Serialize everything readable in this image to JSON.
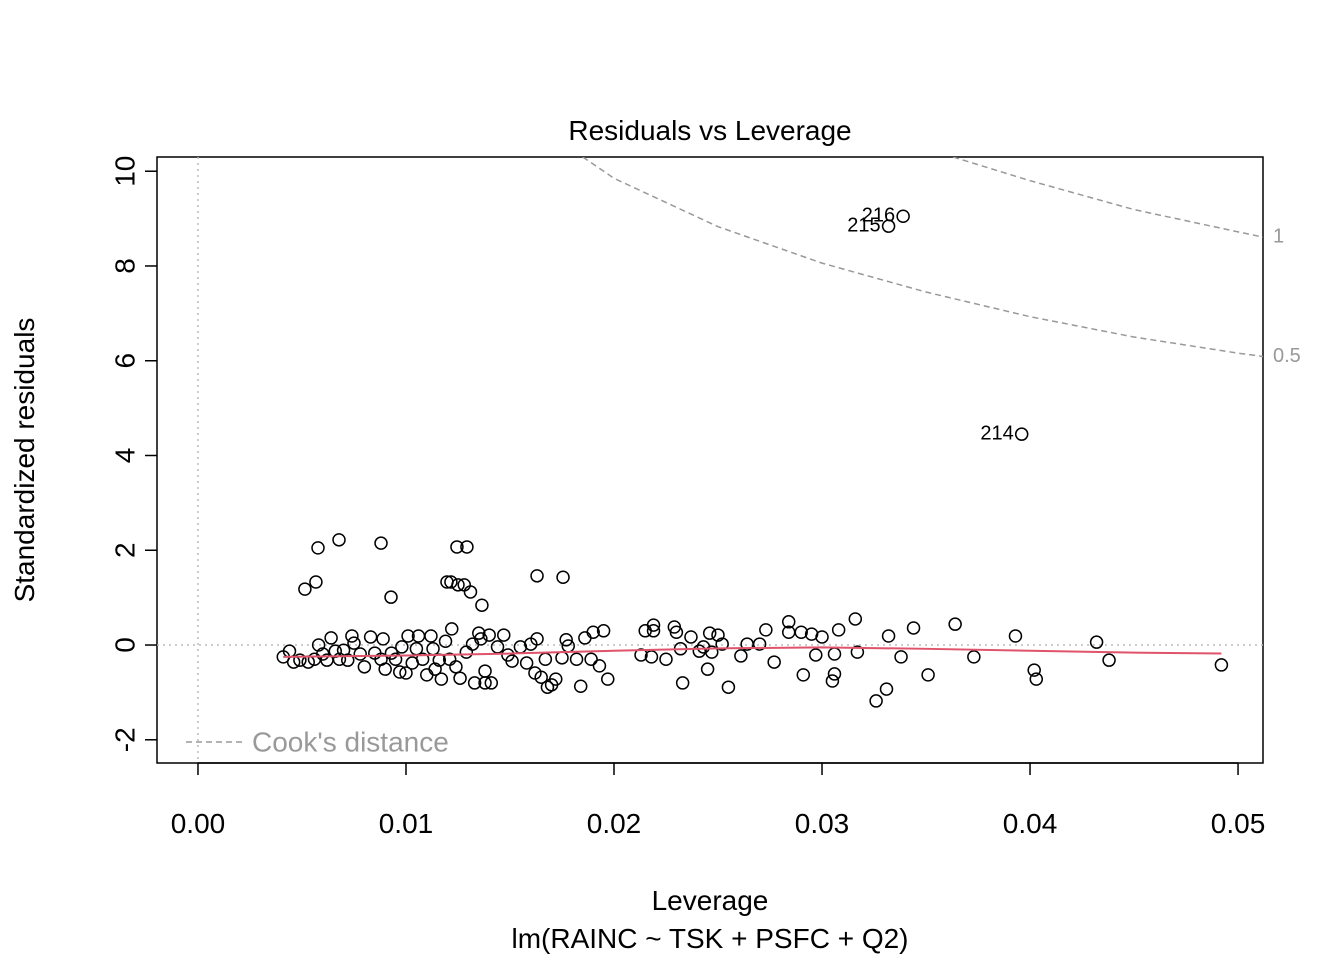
{
  "chart_data": {
    "type": "scatter",
    "title": "Residuals vs Leverage",
    "x_label": "Leverage",
    "y_label": "Standardized residuals",
    "subtitle": "lm(RAINC ~ TSK + PSFC + Q2)",
    "xlim": [
      -0.00197,
      0.0512
    ],
    "ylim": [
      -2.49,
      10.3
    ],
    "xticks": [
      {
        "value": 0,
        "label": "0.00"
      },
      0.01,
      0.02,
      0.03,
      0.04,
      0.05
    ],
    "yticks": [
      -2,
      0,
      2,
      4,
      6,
      8,
      10
    ],
    "reference_lines": {
      "x": 0,
      "y": 0
    },
    "series": [
      {
        "color": "#000000",
        "x": [
          0.00577,
          0.00678,
          0.0088,
          0.01245,
          0.01293,
          0.00514,
          0.00567,
          0.00928,
          0.01197,
          0.01216,
          0.0125,
          0.0128,
          0.0131,
          0.01365,
          0.0163,
          0.01755,
          0.0492,
          0.0438,
          0.0432,
          0.0402,
          0.0403,
          0.0393,
          0.0373,
          0.0364,
          0.0351,
          0.0344,
          0.0338,
          0.0332,
          0.0331,
          0.0326,
          0.0317,
          0.0316,
          0.0308,
          0.0306,
          0.0306,
          0.0305,
          0.03,
          0.0297,
          0.0295,
          0.0291,
          0.029,
          0.0284,
          0.0284,
          0.0277,
          0.0273,
          0.027,
          0.0264,
          0.0261,
          0.0255,
          0.0252,
          0.025,
          0.0247,
          0.0246,
          0.0245,
          0.0243,
          0.0241,
          0.0237,
          0.0233,
          0.0232,
          0.023,
          0.0229,
          0.0225,
          0.0219,
          0.0219,
          0.0218,
          0.0215,
          0.0213,
          0.0197,
          0.0195,
          0.0193,
          0.019,
          0.0189,
          0.0186,
          0.0184,
          0.0182,
          0.0178,
          0.0177,
          0.0175,
          0.0172,
          0.017,
          0.0168,
          0.0167,
          0.0165,
          0.0163,
          0.0162,
          0.016,
          0.0158,
          0.0155,
          0.0151,
          0.0149,
          0.0147,
          0.0144,
          0.0141,
          0.014,
          0.0138,
          0.0138,
          0.0136,
          0.0135,
          0.0133,
          0.0132,
          0.0129,
          0.0126,
          0.0124,
          0.0122,
          0.0121,
          0.0119,
          0.0117,
          0.0116,
          0.0114,
          0.0113,
          0.0112,
          0.011,
          0.0108,
          0.0106,
          0.0105,
          0.0103,
          0.0101,
          0.01,
          0.0098,
          0.0097,
          0.0095,
          0.0093,
          0.009,
          0.0089,
          0.0088,
          0.0085,
          0.0083,
          0.008,
          0.0078,
          0.0075,
          0.0074,
          0.0072,
          0.007,
          0.0068,
          0.0066,
          0.0064,
          0.0062,
          0.006,
          0.0058,
          0.0056,
          0.0053,
          0.0049,
          0.0046,
          0.0044,
          0.0041
        ],
        "y": [
          2.05,
          2.22,
          2.15,
          2.07,
          2.07,
          1.18,
          1.33,
          1.01,
          1.33,
          1.33,
          1.27,
          1.27,
          1.12,
          0.84,
          1.46,
          1.43,
          -0.42,
          -0.32,
          0.06,
          -0.53,
          -0.72,
          0.19,
          -0.25,
          0.44,
          -0.63,
          0.36,
          -0.25,
          0.19,
          -0.93,
          -1.18,
          -0.15,
          0.55,
          0.32,
          -0.19,
          -0.61,
          -0.76,
          0.17,
          -0.21,
          0.23,
          -0.63,
          0.27,
          0.49,
          0.27,
          -0.36,
          0.32,
          0.02,
          0.02,
          -0.23,
          -0.89,
          0.02,
          0.21,
          -0.15,
          0.25,
          -0.51,
          -0.04,
          -0.13,
          0.17,
          -0.8,
          -0.08,
          0.27,
          0.38,
          -0.3,
          0.3,
          0.42,
          -0.25,
          0.3,
          -0.21,
          -0.72,
          0.3,
          -0.44,
          0.27,
          -0.3,
          0.15,
          -0.87,
          -0.3,
          -0.02,
          0.11,
          -0.27,
          -0.72,
          -0.84,
          -0.89,
          -0.3,
          -0.68,
          0.13,
          -0.59,
          0.02,
          -0.38,
          -0.04,
          -0.34,
          -0.21,
          0.21,
          -0.04,
          -0.8,
          0.21,
          -0.55,
          -0.8,
          0.13,
          0.25,
          -0.8,
          0.02,
          -0.15,
          -0.7,
          -0.46,
          0.34,
          -0.3,
          0.08,
          -0.72,
          -0.32,
          -0.51,
          -0.08,
          0.19,
          -0.63,
          -0.3,
          0.19,
          -0.08,
          -0.38,
          0.19,
          -0.59,
          -0.04,
          -0.57,
          -0.3,
          -0.17,
          -0.51,
          0.13,
          -0.3,
          -0.17,
          0.17,
          -0.46,
          -0.19,
          0.04,
          0.19,
          -0.32,
          -0.11,
          -0.3,
          -0.13,
          0.15,
          -0.32,
          -0.19,
          0,
          -0.3,
          -0.36,
          -0.32,
          -0.36,
          -0.13,
          -0.25
        ]
      }
    ],
    "labeled_points": {
      "labels": [
        "214",
        "215",
        "216"
      ],
      "x": [
        0.0396,
        0.0332,
        0.0339
      ],
      "y": [
        4.45,
        8.84,
        9.05
      ]
    },
    "smooth": {
      "color": "#df536b",
      "x": [
        0.0041,
        0.01,
        0.015,
        0.02,
        0.025,
        0.03,
        0.035,
        0.04,
        0.045,
        0.0492
      ],
      "y": [
        -0.25,
        -0.22,
        -0.18,
        -0.12,
        -0.07,
        -0.05,
        -0.08,
        -0.12,
        -0.16,
        -0.18
      ]
    },
    "contours": [
      {
        "label": "0.5",
        "x": [
          0.0185,
          0.02,
          0.025,
          0.03,
          0.035,
          0.04,
          0.045,
          0.05,
          0.0512
        ],
        "y": [
          10.3,
          9.85,
          8.83,
          8.06,
          7.45,
          6.93,
          6.5,
          6.16,
          6.09
        ]
      },
      {
        "label": "1",
        "x": [
          0.0363,
          0.04,
          0.045,
          0.05,
          0.0512
        ],
        "y": [
          10.3,
          9.8,
          9.19,
          8.72,
          8.61
        ]
      }
    ],
    "legend": {
      "label": "Cook's distance",
      "position": "bottom-left"
    }
  }
}
